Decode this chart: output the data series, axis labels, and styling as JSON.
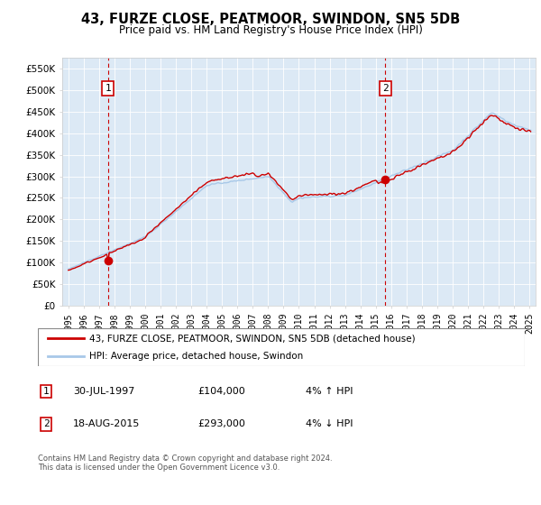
{
  "title": "43, FURZE CLOSE, PEATMOOR, SWINDON, SN5 5DB",
  "subtitle": "Price paid vs. HM Land Registry's House Price Index (HPI)",
  "sale1_price": 104000,
  "sale1_label": "1",
  "sale2_price": 293000,
  "sale2_label": "2",
  "legend_line1": "43, FURZE CLOSE, PEATMOOR, SWINDON, SN5 5DB (detached house)",
  "legend_line2": "HPI: Average price, detached house, Swindon",
  "footer": "Contains HM Land Registry data © Crown copyright and database right 2024.\nThis data is licensed under the Open Government Licence v3.0.",
  "ylim": [
    0,
    575000
  ],
  "yticks": [
    0,
    50000,
    100000,
    150000,
    200000,
    250000,
    300000,
    350000,
    400000,
    450000,
    500000,
    550000
  ],
  "ytick_labels": [
    "£0",
    "£50K",
    "£100K",
    "£150K",
    "£200K",
    "£250K",
    "£300K",
    "£350K",
    "£400K",
    "£450K",
    "£500K",
    "£550K"
  ],
  "hpi_color": "#a8c8e8",
  "price_color": "#cc0000",
  "plot_bg_color": "#dce9f5",
  "marker_color": "#cc0000",
  "vline_color": "#cc0000",
  "box_color": "#cc0000",
  "sale1_x": 1997.583,
  "sale2_x": 2015.625
}
